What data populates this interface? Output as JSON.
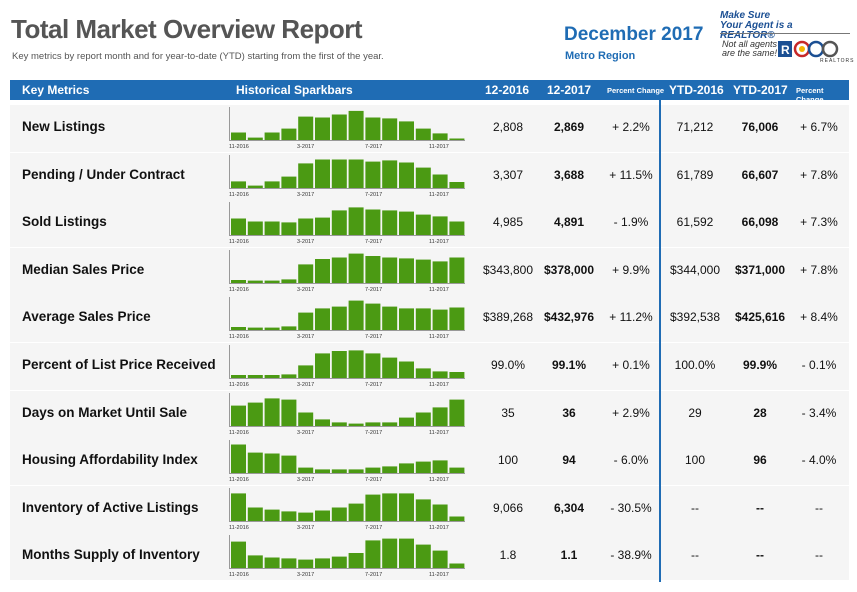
{
  "header": {
    "title": "Total Market Overview Report",
    "subtitle": "Key metrics by report month and for year-to-date (YTD) starting from the first of the year.",
    "period": "December 2017",
    "region": "Metro Region"
  },
  "logo": {
    "line1": "Make Sure",
    "line2": "Your Agent is a REALTOR®",
    "line3": "Not all agents are the same!",
    "org": "REALTORS"
  },
  "columns": {
    "metrics": "Key Metrics",
    "sparkbars": "Historical Sparkbars",
    "c2016": "12-2016",
    "c2017": "12-2017",
    "pct": "Percent Change",
    "ytd2016": "YTD-2016",
    "ytd2017": "YTD-2017",
    "ytdpct": "Percent Change"
  },
  "spark_ticks": [
    "11-2016",
    "3-2017",
    "7-2017",
    "11-2017"
  ],
  "colors": {
    "accent": "#1f6cb4",
    "bar": "#4b9a13",
    "row_bg": "#f5f5f5"
  },
  "rows": [
    {
      "name": "New Listings",
      "v2016": "2,808",
      "v2017": "2,869",
      "pct": "+ 2.2%",
      "ytd2016": "71,212",
      "ytd2017": "76,006",
      "ytdpct": "+ 6.7%",
      "bars": [
        0.25,
        0.08,
        0.25,
        0.38,
        0.78,
        0.75,
        0.85,
        0.97,
        0.75,
        0.72,
        0.62,
        0.38,
        0.22,
        0.05
      ]
    },
    {
      "name": "Pending / Under Contract",
      "v2016": "3,307",
      "v2017": "3,688",
      "pct": "+ 11.5%",
      "ytd2016": "61,789",
      "ytd2017": "66,607",
      "ytdpct": "+ 7.8%",
      "bars": [
        0.22,
        0.08,
        0.22,
        0.38,
        0.82,
        0.95,
        0.95,
        0.95,
        0.88,
        0.92,
        0.85,
        0.68,
        0.45,
        0.2
      ]
    },
    {
      "name": "Sold Listings",
      "v2016": "4,985",
      "v2017": "4,891",
      "pct": "- 1.9%",
      "ytd2016": "61,592",
      "ytd2017": "66,098",
      "ytdpct": "+ 7.3%",
      "bars": [
        0.55,
        0.45,
        0.45,
        0.42,
        0.55,
        0.58,
        0.82,
        0.92,
        0.85,
        0.82,
        0.78,
        0.68,
        0.62,
        0.45
      ]
    },
    {
      "name": "Median Sales Price",
      "v2016": "$343,800",
      "v2017": "$378,000",
      "pct": "+ 9.9%",
      "ytd2016": "$344,000",
      "ytd2017": "$371,000",
      "ytdpct": "+ 7.8%",
      "bars": [
        0.1,
        0.08,
        0.08,
        0.12,
        0.62,
        0.8,
        0.85,
        0.98,
        0.9,
        0.85,
        0.82,
        0.78,
        0.72,
        0.85
      ]
    },
    {
      "name": "Average Sales Price",
      "v2016": "$389,268",
      "v2017": "$432,976",
      "pct": "+ 11.2%",
      "ytd2016": "$392,538",
      "ytd2017": "$425,616",
      "ytdpct": "+ 8.4%",
      "bars": [
        0.1,
        0.08,
        0.08,
        0.12,
        0.58,
        0.72,
        0.78,
        0.98,
        0.88,
        0.78,
        0.72,
        0.72,
        0.68,
        0.75
      ]
    },
    {
      "name": "Percent of List Price Received",
      "v2016": "99.0%",
      "v2017": "99.1%",
      "pct": "+ 0.1%",
      "ytd2016": "100.0%",
      "ytd2017": "99.9%",
      "ytdpct": "- 0.1%",
      "bars": [
        0.1,
        0.1,
        0.1,
        0.12,
        0.42,
        0.82,
        0.9,
        0.92,
        0.82,
        0.68,
        0.55,
        0.32,
        0.22,
        0.2
      ]
    },
    {
      "name": "Days on Market Until Sale",
      "v2016": "35",
      "v2017": "36",
      "pct": "+ 2.9%",
      "ytd2016": "29",
      "ytd2017": "28",
      "ytdpct": "- 3.4%",
      "bars": [
        0.68,
        0.78,
        0.92,
        0.88,
        0.45,
        0.22,
        0.12,
        0.08,
        0.12,
        0.12,
        0.28,
        0.45,
        0.62,
        0.88
      ]
    },
    {
      "name": "Housing Affordability Index",
      "v2016": "100",
      "v2017": "94",
      "pct": "- 6.0%",
      "ytd2016": "100",
      "ytd2017": "96",
      "ytdpct": "- 4.0%",
      "bars": [
        0.95,
        0.68,
        0.65,
        0.58,
        0.18,
        0.12,
        0.12,
        0.12,
        0.18,
        0.22,
        0.32,
        0.38,
        0.42,
        0.18
      ]
    },
    {
      "name": "Inventory of Active Listings",
      "v2016": "9,066",
      "v2017": "6,304",
      "pct": "- 30.5%",
      "ytd2016": "--",
      "ytd2017": "--",
      "ytdpct": "--",
      "bars": [
        0.92,
        0.45,
        0.38,
        0.32,
        0.28,
        0.35,
        0.45,
        0.58,
        0.88,
        0.92,
        0.92,
        0.72,
        0.55,
        0.15
      ]
    },
    {
      "name": "Months Supply of Inventory",
      "v2016": "1.8",
      "v2017": "1.1",
      "pct": "- 38.9%",
      "ytd2016": "--",
      "ytd2017": "--",
      "ytdpct": "--",
      "bars": [
        0.88,
        0.42,
        0.35,
        0.32,
        0.28,
        0.32,
        0.38,
        0.5,
        0.92,
        0.98,
        0.98,
        0.78,
        0.58,
        0.15
      ]
    }
  ]
}
